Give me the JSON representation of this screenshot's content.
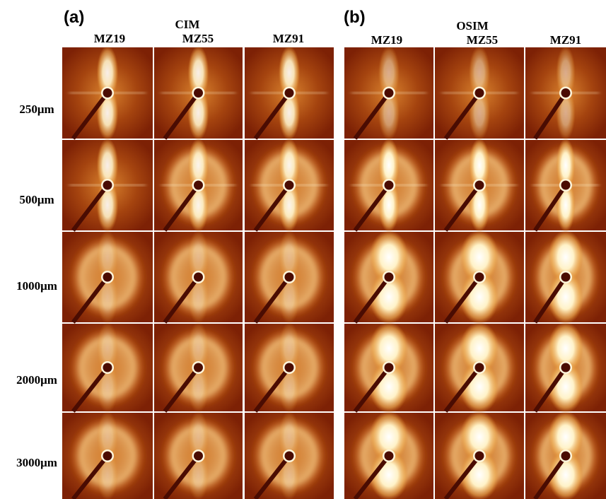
{
  "panels": [
    {
      "label": "(a)",
      "title": "CIM",
      "columns": [
        "MZ19",
        "MZ55",
        "MZ91"
      ]
    },
    {
      "label": "(b)",
      "title": "OSIM",
      "columns": [
        "MZ19",
        "MZ55",
        "MZ91"
      ]
    }
  ],
  "rows": [
    "250μm",
    "500μm",
    "1000μm",
    "2000μm",
    "3000μm"
  ]
}
